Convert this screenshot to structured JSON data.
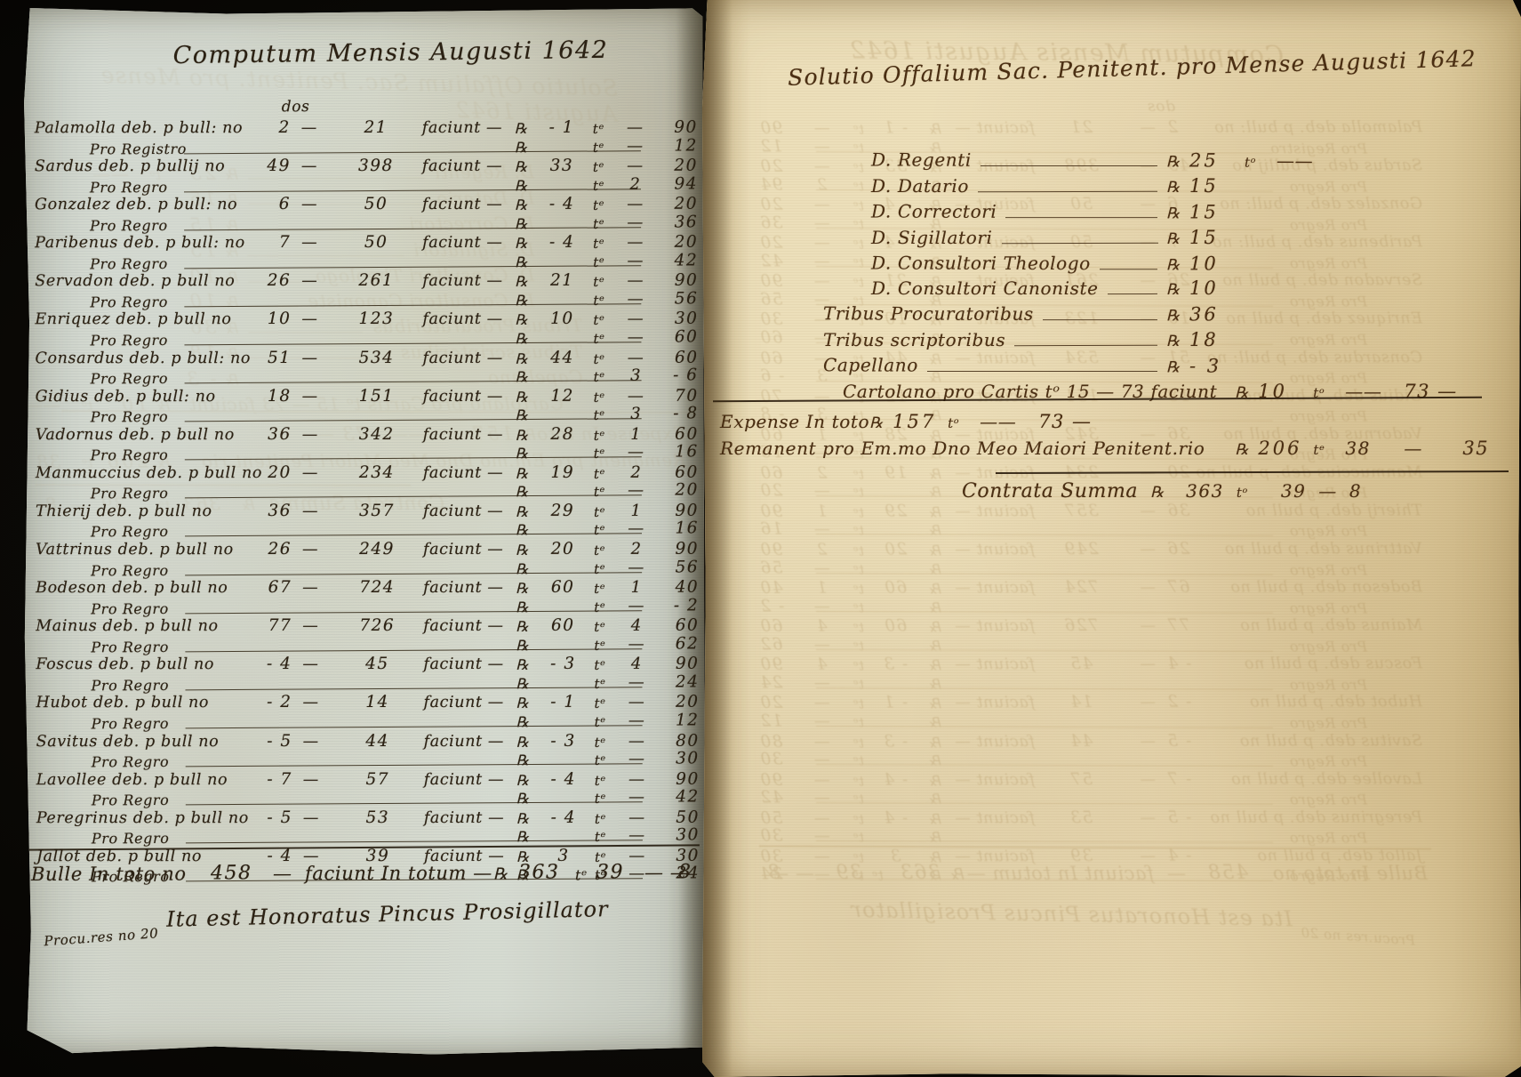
{
  "document_type": "Manuscript account ledger, two-page spread",
  "left_page": {
    "title": "Computum Mensis Augusti 1642",
    "column_header": "dos",
    "currency_symbol": "℞",
    "unit_symbol": "tᵉ",
    "faciunt_word": "faciunt —",
    "entries": [
      {
        "name": "Palamolla deb. p bull: no",
        "count": "2",
        "sep": "—",
        "total": "21",
        "amount": "- 1",
        "mid": "—",
        "final": "90",
        "rego": "Pro Registro",
        "rego_mid": "—",
        "rego_final": "12"
      },
      {
        "name": "Sardus deb. p bullij no",
        "count": "49",
        "sep": "—",
        "total": "398",
        "amount": "33",
        "mid": "—",
        "final": "20",
        "rego": "Pro Regro",
        "rego_mid": "2",
        "rego_final": "94"
      },
      {
        "name": "Gonzalez deb. p bull: no",
        "count": "6",
        "sep": "—",
        "total": "50",
        "amount": "- 4",
        "mid": "—",
        "final": "20",
        "rego": "Pro Regro",
        "rego_mid": "—",
        "rego_final": "36"
      },
      {
        "name": "Paribenus deb. p bull: no",
        "count": "7",
        "sep": "—",
        "total": "50",
        "amount": "- 4",
        "mid": "—",
        "final": "20",
        "rego": "Pro Regro",
        "rego_mid": "—",
        "rego_final": "42"
      },
      {
        "name": "Servadon deb. p bull no",
        "count": "26",
        "sep": "—",
        "total": "261",
        "amount": "21",
        "mid": "—",
        "final": "90",
        "rego": "Pro Regro",
        "rego_mid": "—",
        "rego_final": "56"
      },
      {
        "name": "Enriquez deb. p bull no",
        "count": "10",
        "sep": "—",
        "total": "123",
        "amount": "10",
        "mid": "—",
        "final": "30",
        "rego": "Pro Regro",
        "rego_mid": "—",
        "rego_final": "60"
      },
      {
        "name": "Consardus deb. p bull: no",
        "count": "51",
        "sep": "—",
        "total": "534",
        "amount": "44",
        "mid": "—",
        "final": "60",
        "rego": "Pro Regro",
        "rego_mid": "3",
        "rego_final": "- 6"
      },
      {
        "name": "Gidius deb. p bull: no",
        "count": "18",
        "sep": "—",
        "total": "151",
        "amount": "12",
        "mid": "—",
        "final": "70",
        "rego": "Pro Regro",
        "rego_mid": "3",
        "rego_final": "- 8"
      },
      {
        "name": "Vadornus deb. p bull no",
        "count": "36",
        "sep": "—",
        "total": "342",
        "amount": "28",
        "mid": "1",
        "final": "60",
        "rego": "Pro Regro",
        "rego_mid": "—",
        "rego_final": "16"
      },
      {
        "name": "Manmuccius deb. p bull no",
        "count": "20",
        "sep": "—",
        "total": "234",
        "amount": "19",
        "mid": "2",
        "final": "60",
        "rego": "Pro Regro",
        "rego_mid": "—",
        "rego_final": "20"
      },
      {
        "name": "Thierij deb. p bull no",
        "count": "36",
        "sep": "—",
        "total": "357",
        "amount": "29",
        "mid": "1",
        "final": "90",
        "rego": "Pro Regro",
        "rego_mid": "—",
        "rego_final": "16"
      },
      {
        "name": "Vattrinus deb. p bull no",
        "count": "26",
        "sep": "—",
        "total": "249",
        "amount": "20",
        "mid": "2",
        "final": "90",
        "rego": "Pro Regro",
        "rego_mid": "—",
        "rego_final": "56"
      },
      {
        "name": "Bodeson deb. p bull no",
        "count": "67",
        "sep": "—",
        "total": "724",
        "amount": "60",
        "mid": "1",
        "final": "40",
        "rego": "Pro Regro",
        "rego_mid": "—",
        "rego_final": "- 2"
      },
      {
        "name": "Mainus deb. p bull no",
        "count": "77",
        "sep": "—",
        "total": "726",
        "amount": "60",
        "mid": "4",
        "final": "60",
        "rego": "Pro Regro",
        "rego_mid": "—",
        "rego_final": "62"
      },
      {
        "name": "Foscus deb. p bull no",
        "count": "- 4",
        "sep": "—",
        "total": "45",
        "amount": "- 3",
        "mid": "4",
        "final": "90",
        "rego": "Pro Regro",
        "rego_mid": "—",
        "rego_final": "24"
      },
      {
        "name": "Hubot deb. p bull no",
        "count": "- 2",
        "sep": "—",
        "total": "14",
        "amount": "- 1",
        "mid": "—",
        "final": "20",
        "rego": "Pro Regro",
        "rego_mid": "—",
        "rego_final": "12"
      },
      {
        "name": "Savitus deb. p bull no",
        "count": "- 5",
        "sep": "—",
        "total": "44",
        "amount": "- 3",
        "mid": "—",
        "final": "80",
        "rego": "Pro Regro",
        "rego_mid": "—",
        "rego_final": "30"
      },
      {
        "name": "Lavollee deb. p bull no",
        "count": "- 7",
        "sep": "—",
        "total": "57",
        "amount": "- 4",
        "mid": "—",
        "final": "90",
        "rego": "Pro Regro",
        "rego_mid": "—",
        "rego_final": "42"
      },
      {
        "name": "Peregrinus deb. p bull no",
        "count": "- 5",
        "sep": "—",
        "total": "53",
        "amount": "- 4",
        "mid": "—",
        "final": "50",
        "rego": "Pro Regro",
        "rego_mid": "—",
        "rego_final": "30"
      },
      {
        "name": "Jallot deb. p bull no",
        "count": "- 4",
        "sep": "—",
        "total": "39",
        "amount": "3",
        "mid": "—",
        "final": "30",
        "rego": "Pro Regro",
        "rego_mid": "—",
        "rego_final": "24"
      }
    ],
    "totals": {
      "label": "Bulle In toto no",
      "count": "458",
      "sep": "—",
      "faciunt": "faciunt In totum —",
      "amount": "363",
      "unit": "tᵉ",
      "unit_value": "39",
      "sep2": "—  —",
      "final": "8"
    },
    "signature": "Ita est Honoratus Pincus Prosigillator",
    "corner_note": "Procu.res no 20"
  },
  "right_page": {
    "title": "Solutio Offalium Sac. Penitent. pro Mense Augusti 1642",
    "currency_symbol": "℞",
    "entries": [
      {
        "label": "D. Regenti",
        "amount": "25",
        "unit": "tᵒ",
        "tail": "——",
        "final": ""
      },
      {
        "label": "D. Datario",
        "amount": "15",
        "unit": "",
        "tail": "",
        "final": ""
      },
      {
        "label": "D. Correctori",
        "amount": "15",
        "unit": "",
        "tail": "",
        "final": ""
      },
      {
        "label": "D. Sigillatori",
        "amount": "15",
        "unit": "",
        "tail": "",
        "final": ""
      },
      {
        "label": "D. Consultori Theologo",
        "amount": "10",
        "unit": "",
        "tail": "",
        "final": ""
      },
      {
        "label": "D. Consultori Canoniste",
        "amount": "10",
        "unit": "",
        "tail": "",
        "final": ""
      },
      {
        "label": "Tribus Procuratoribus",
        "amount": "36",
        "unit": "",
        "tail": "",
        "final": ""
      },
      {
        "label": "Tribus scriptoribus",
        "amount": "18",
        "unit": "",
        "tail": "",
        "final": ""
      },
      {
        "label": "Capellano",
        "amount": "- 3",
        "unit": "",
        "tail": "",
        "final": ""
      },
      {
        "label": "Cartolano pro Cartis tᵒ 15 — 73 faciunt",
        "amount": "10",
        "unit": "tᵒ",
        "tail": "——",
        "final": "73 —"
      }
    ],
    "expense": {
      "label": "Expense In toto",
      "amount": "157",
      "unit": "tᵒ",
      "tail": "——",
      "final": "73 —"
    },
    "remanent": {
      "label": "Remanent pro Em.mo Dno Meo Maiori Penitent.rio",
      "sep": "—",
      "amount": "206",
      "unit": "tᵉ",
      "unit_value": "38",
      "tail": "—",
      "final": "35"
    },
    "contrata": {
      "label": "Contrata Summa",
      "amount": "363",
      "unit": "tᵒ",
      "unit_value": "39",
      "tail": "—",
      "final": "8"
    }
  }
}
